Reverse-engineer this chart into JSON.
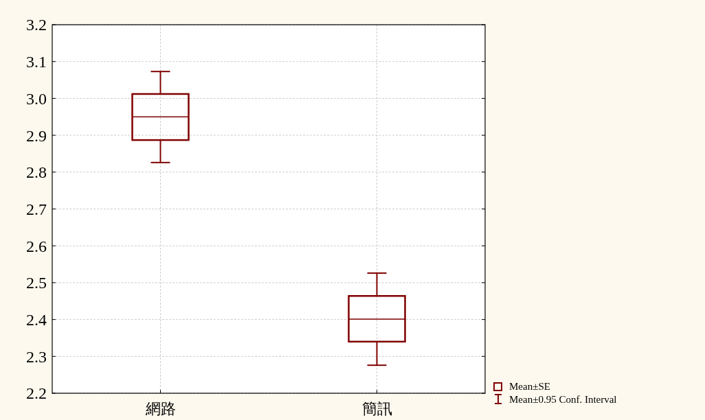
{
  "chart_data": {
    "type": "box",
    "categories": [
      "網路",
      "簡訊"
    ],
    "color": "#800000",
    "boxes": [
      {
        "low": 2.826,
        "q1": 2.887,
        "median": 2.95,
        "q3": 3.012,
        "high": 3.073
      },
      {
        "low": 2.276,
        "q1": 2.34,
        "median": 2.401,
        "q3": 2.464,
        "high": 2.526
      }
    ],
    "ylim": [
      2.2,
      3.2
    ],
    "yticks": [
      2.2,
      2.3,
      2.4,
      2.5,
      2.6,
      2.7,
      2.8,
      2.9,
      {
        "value": 3.0,
        "label": "3.0"
      },
      3.1,
      3.2
    ],
    "grid": true,
    "annotations": [
      "Mean±SE",
      "Mean±0.95 Conf. Interval"
    ]
  }
}
